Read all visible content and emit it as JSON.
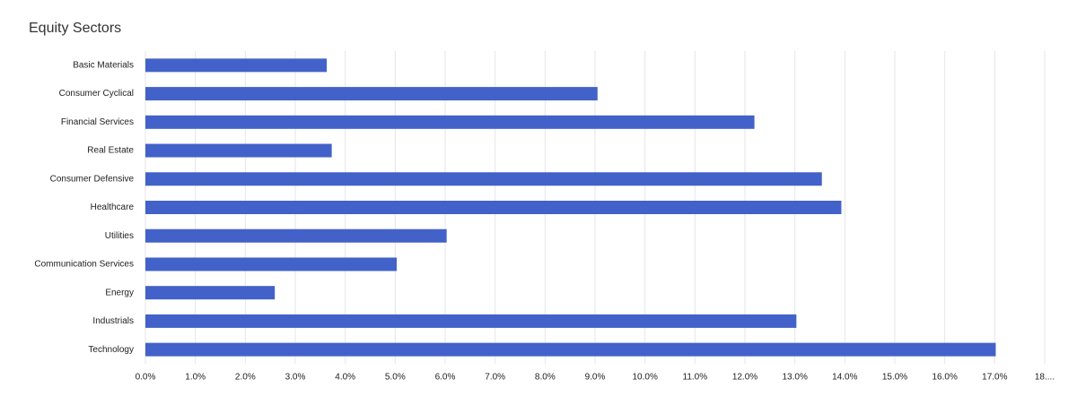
{
  "chart_data": {
    "type": "hbar",
    "title": "Equity Sectors",
    "categories": [
      "Basic Materials",
      "Consumer Cyclical",
      "Financial Services",
      "Real Estate",
      "Consumer Defensive",
      "Healthcare",
      "Utilities",
      "Communication Services",
      "Energy",
      "Industrials",
      "Technology"
    ],
    "values": [
      3.63,
      9.05,
      12.19,
      3.73,
      13.54,
      13.93,
      6.03,
      5.03,
      2.59,
      13.03,
      17.02
    ],
    "color": "#4262c9",
    "xlim": [
      0,
      18
    ],
    "xticks": [
      {
        "value": 0,
        "label": "0.0%"
      },
      {
        "value": 1,
        "label": "1.0%"
      },
      {
        "value": 2,
        "label": "2.0%"
      },
      {
        "value": 3,
        "label": "3.0%"
      },
      {
        "value": 4,
        "label": "4.0%"
      },
      {
        "value": 5,
        "label": "5.0%"
      },
      {
        "value": 6,
        "label": "6.0%"
      },
      {
        "value": 7,
        "label": "7.0%"
      },
      {
        "value": 8,
        "label": "8.0%"
      },
      {
        "value": 9,
        "label": "9.0%"
      },
      {
        "value": 10,
        "label": "10.0%"
      },
      {
        "value": 11,
        "label": "11.0%"
      },
      {
        "value": 12,
        "label": "12.0%"
      },
      {
        "value": 13,
        "label": "13.0%"
      },
      {
        "value": 14,
        "label": "14.0%"
      },
      {
        "value": 15,
        "label": "15.0%"
      },
      {
        "value": 16,
        "label": "16.0%"
      },
      {
        "value": 17,
        "label": "17.0%"
      },
      {
        "value": 18,
        "label": "18...."
      }
    ],
    "grid": true
  }
}
